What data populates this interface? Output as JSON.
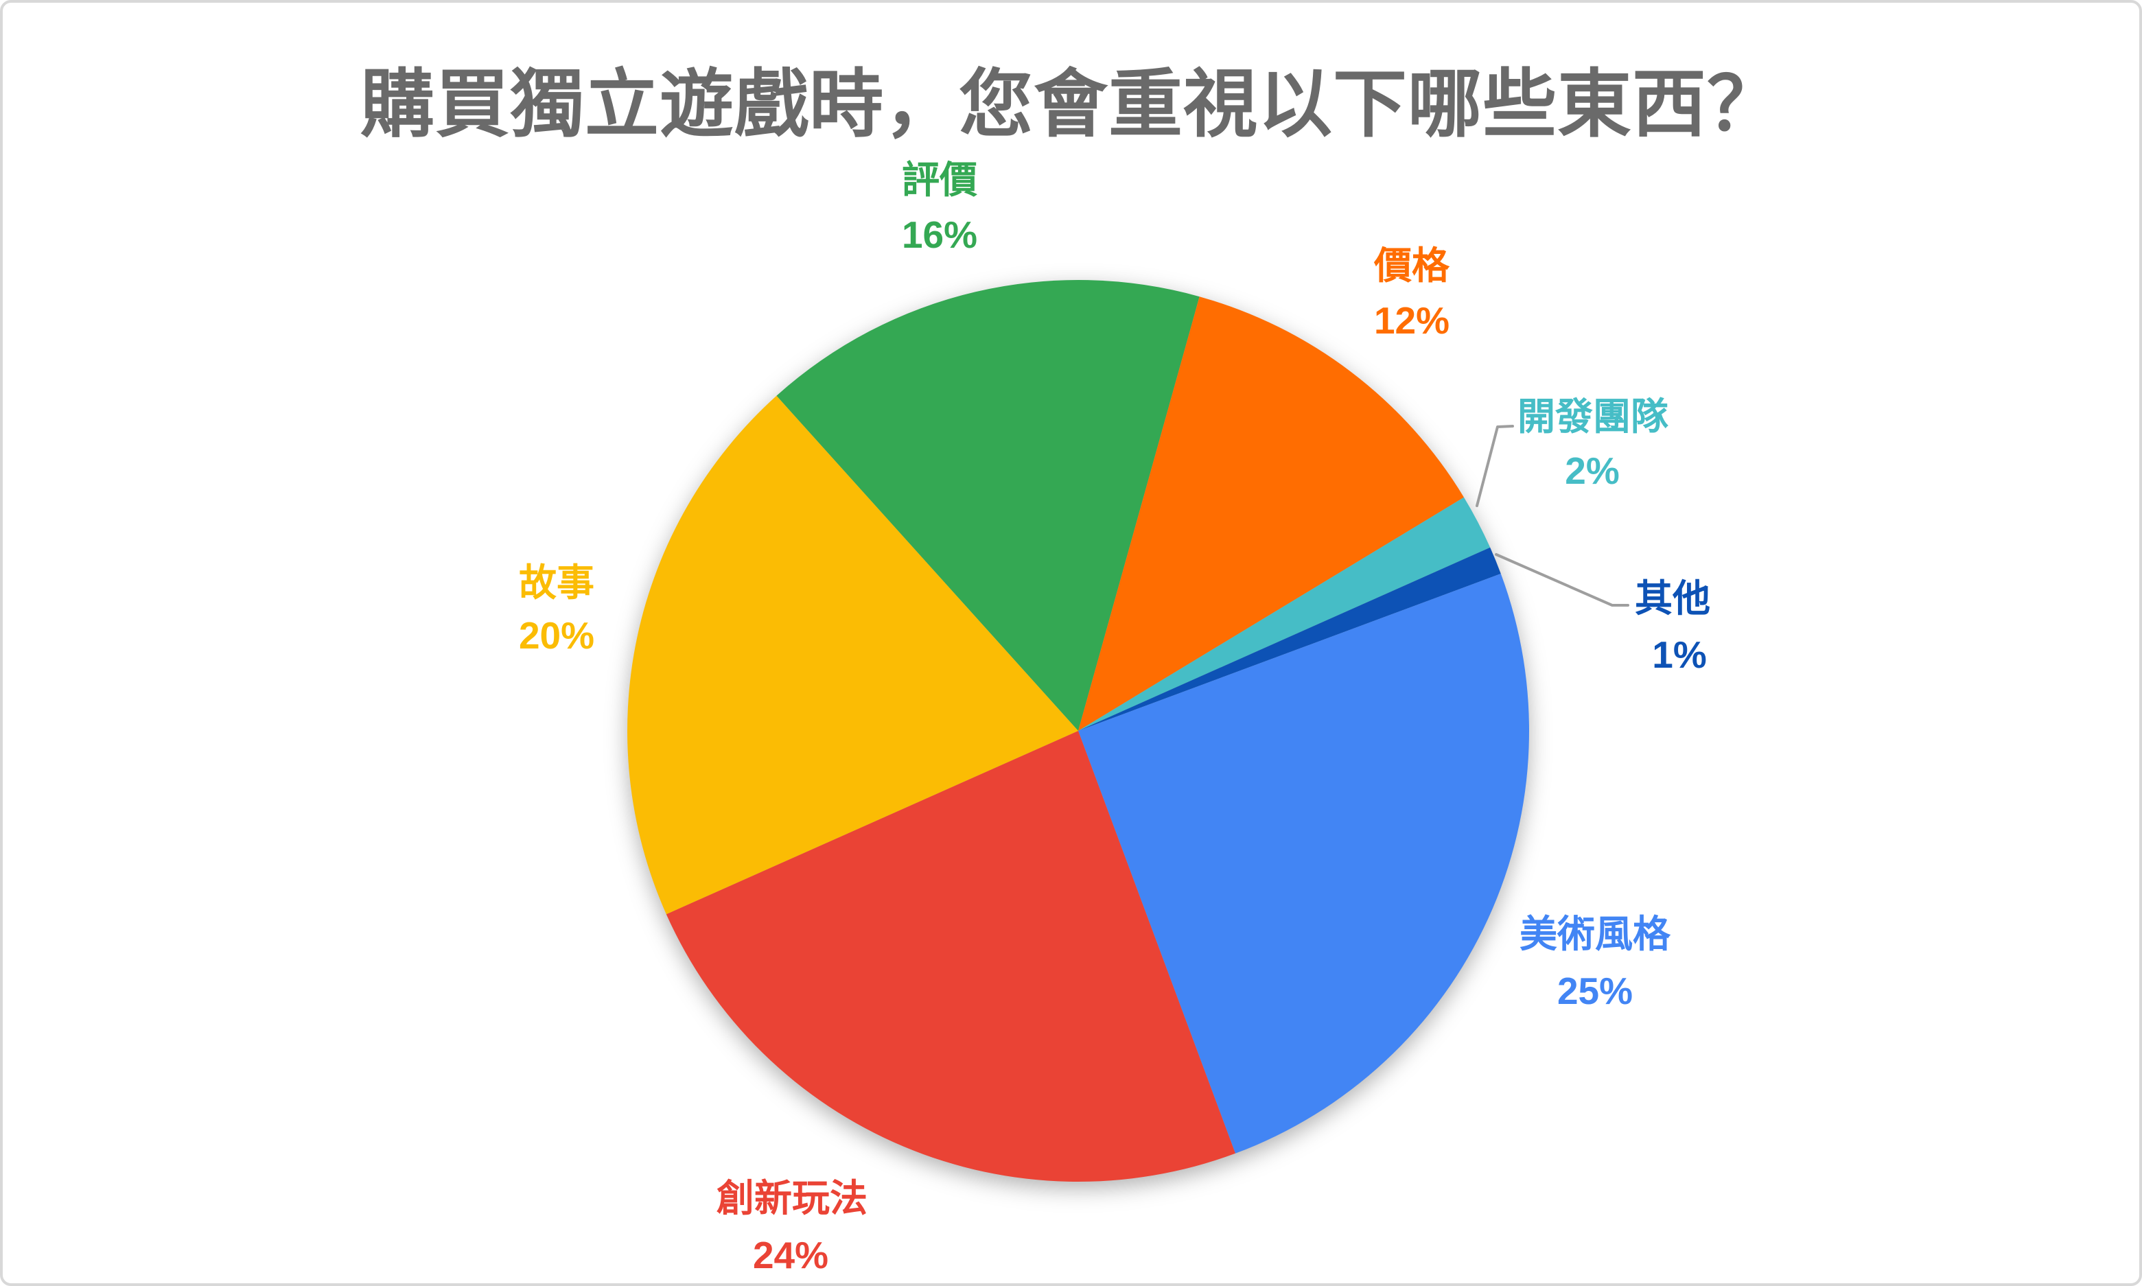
{
  "card": {
    "background": "#ffffff",
    "border_color": "#d8d8d8"
  },
  "chart_data": {
    "type": "pie",
    "title": "購買獨立遊戲時，您會重視以下哪些東西？",
    "title_color": "#6a6a6a",
    "legend_position": "none",
    "labels_outside": true,
    "label_format": "name + percent",
    "start_angle_deg": -42,
    "direction": "clockwise",
    "leader_line_color": "#9e9e9e",
    "slices": [
      {
        "id": "reviews",
        "label": "評價",
        "value": 16,
        "pct_label": "16%",
        "color": "#34A853",
        "has_leader_line": false
      },
      {
        "id": "price",
        "label": "價格",
        "value": 12,
        "pct_label": "12%",
        "color": "#FF6D01",
        "has_leader_line": false
      },
      {
        "id": "dev-team",
        "label": "開發團隊",
        "value": 2,
        "pct_label": "2%",
        "color": "#46BDC6",
        "has_leader_line": true
      },
      {
        "id": "other",
        "label": "其他",
        "value": 1,
        "pct_label": "1%",
        "color": "#0D52B5",
        "has_leader_line": true
      },
      {
        "id": "art-style",
        "label": "美術風格",
        "value": 25,
        "pct_label": "25%",
        "color": "#4285F4",
        "has_leader_line": false
      },
      {
        "id": "innovative-gameplay",
        "label": "創新玩法",
        "value": 24,
        "pct_label": "24%",
        "color": "#EA4335",
        "has_leader_line": false
      },
      {
        "id": "story",
        "label": "故事",
        "value": 20,
        "pct_label": "20%",
        "color": "#FBBC04",
        "has_leader_line": false
      }
    ]
  }
}
